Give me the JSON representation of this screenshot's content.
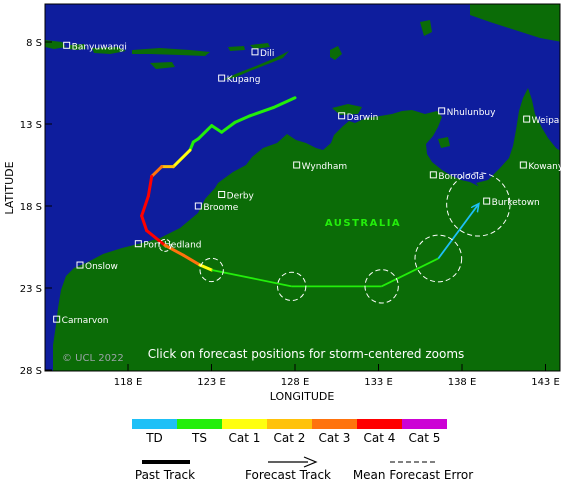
{
  "axes": {
    "ylabel": "LATITUDE",
    "xlabel": "LONGITUDE",
    "lat_ticks": [
      "8 S",
      "13 S",
      "18 S",
      "23 S",
      "28 S"
    ],
    "lon_ticks": [
      "118 E",
      "123 E",
      "128 E",
      "133 E",
      "138 E",
      "143 E"
    ]
  },
  "map_text": {
    "country": "AUSTRALIA",
    "copyright": "© UCL 2022",
    "instruction": "Click on forecast positions for storm-centered zooms"
  },
  "places": [
    {
      "name": "Banyuwangi",
      "lon": 114.3,
      "lat": -8.2
    },
    {
      "name": "Dili",
      "lon": 125.6,
      "lat": -8.6
    },
    {
      "name": "Kupang",
      "lon": 123.6,
      "lat": -10.2
    },
    {
      "name": "Darwin",
      "lon": 130.8,
      "lat": -12.5
    },
    {
      "name": "Nhulunbuy",
      "lon": 136.8,
      "lat": -12.2
    },
    {
      "name": "Weipa",
      "lon": 141.9,
      "lat": -12.7
    },
    {
      "name": "Wyndham",
      "lon": 128.1,
      "lat": -15.5
    },
    {
      "name": "Borroloola",
      "lon": 136.3,
      "lat": -16.1
    },
    {
      "name": "Kowanyama",
      "lon": 141.7,
      "lat": -15.5
    },
    {
      "name": "Derby",
      "lon": 123.6,
      "lat": -17.3
    },
    {
      "name": "Broome",
      "lon": 122.2,
      "lat": -18.0
    },
    {
      "name": "Burketown",
      "lon": 139.5,
      "lat": -17.7
    },
    {
      "name": "Port Hedland",
      "lon": 118.6,
      "lat": -20.3
    },
    {
      "name": "Onslow",
      "lon": 115.1,
      "lat": -21.6
    },
    {
      "name": "Carnarvon",
      "lon": 113.7,
      "lat": -24.9
    }
  ],
  "past_track": [
    {
      "lon": 128.0,
      "lat": -11.4,
      "cat": "TS"
    },
    {
      "lon": 126.7,
      "lat": -12.0,
      "cat": "TS"
    },
    {
      "lon": 125.3,
      "lat": -12.5,
      "cat": "TS"
    },
    {
      "lon": 124.4,
      "lat": -12.9,
      "cat": "TS"
    },
    {
      "lon": 123.6,
      "lat": -13.5,
      "cat": "TS"
    },
    {
      "lon": 123.0,
      "lat": -13.1,
      "cat": "TS"
    },
    {
      "lon": 122.2,
      "lat": -13.9,
      "cat": "TS"
    },
    {
      "lon": 121.9,
      "lat": -14.1,
      "cat": "TS"
    },
    {
      "lon": 121.7,
      "lat": -14.6,
      "cat": "TS"
    },
    {
      "lon": 120.7,
      "lat": -15.6,
      "cat": "Cat 1"
    },
    {
      "lon": 120.0,
      "lat": -15.6,
      "cat": "Cat 2"
    },
    {
      "lon": 119.4,
      "lat": -16.2,
      "cat": "Cat 3"
    },
    {
      "lon": 119.2,
      "lat": -17.4,
      "cat": "Cat 4"
    },
    {
      "lon": 118.8,
      "lat": -18.6,
      "cat": "Cat 4"
    },
    {
      "lon": 119.1,
      "lat": -19.5,
      "cat": "Cat 4"
    },
    {
      "lon": 120.2,
      "lat": -20.4,
      "cat": "Cat 4"
    },
    {
      "lon": 121.3,
      "lat": -21.0,
      "cat": "Cat 3"
    },
    {
      "lon": 122.3,
      "lat": -21.6,
      "cat": "Cat 3"
    },
    {
      "lon": 123.0,
      "lat": -21.9,
      "cat": "Cat 1"
    }
  ],
  "forecast_track": [
    {
      "lon": 123.0,
      "lat": -21.9,
      "cat": "Cat 1",
      "error_radius": 0.7
    },
    {
      "lon": 127.8,
      "lat": -22.9,
      "cat": "TS",
      "error_radius": 0.85
    },
    {
      "lon": 133.2,
      "lat": -22.9,
      "cat": "TS",
      "error_radius": 1.0
    },
    {
      "lon": 136.6,
      "lat": -21.2,
      "cat": "TS",
      "error_radius": 1.4
    },
    {
      "lon": 139.0,
      "lat": -17.9,
      "cat": "TD",
      "error_radius": 1.9
    }
  ],
  "legend": {
    "categories": [
      {
        "label": "TD",
        "color": "#1ec0f7"
      },
      {
        "label": "TS",
        "color": "#23ee0b"
      },
      {
        "label": "Cat 1",
        "color": "#ffff0f"
      },
      {
        "label": "Cat 2",
        "color": "#ffc20a"
      },
      {
        "label": "Cat 3",
        "color": "#ff730d"
      },
      {
        "label": "Cat 4",
        "color": "#ff0000"
      },
      {
        "label": "Cat 5",
        "color": "#cc02d5"
      }
    ],
    "past_track_label": "Past Track",
    "forecast_track_label": "Forecast Track",
    "error_label": "Mean Forecast Error"
  },
  "colors": {
    "ocean": "#0e1d9d",
    "land": "#0b6c07"
  }
}
